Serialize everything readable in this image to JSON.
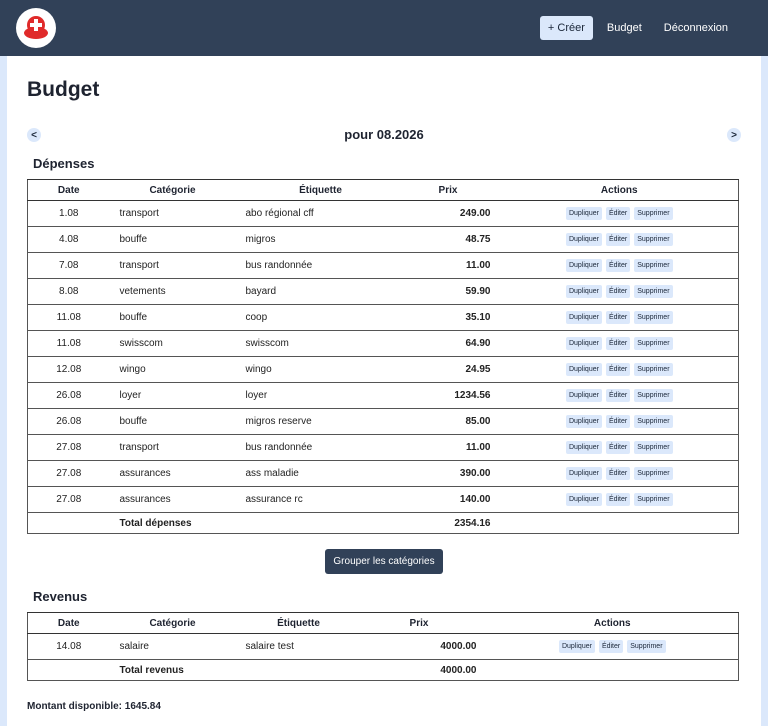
{
  "nav": {
    "create_label": "+ Créer",
    "budget_label": "Budget",
    "logout_label": "Déconnexion"
  },
  "page": {
    "title": "Budget",
    "month_label": "pour 08.2026",
    "prev_label": "<",
    "next_label": ">"
  },
  "depenses": {
    "heading": "Dépenses",
    "columns": [
      "Date",
      "Catégorie",
      "Étiquette",
      "Prix",
      "Actions"
    ],
    "action_labels": [
      "Dupliquer",
      "Éditer",
      "Supprimer"
    ],
    "rows": [
      {
        "date": "1.08",
        "category": "transport",
        "label": "abo régional cff",
        "price": "249.00"
      },
      {
        "date": "4.08",
        "category": "bouffe",
        "label": "migros",
        "price": "48.75"
      },
      {
        "date": "7.08",
        "category": "transport",
        "label": "bus randonnée",
        "price": "11.00"
      },
      {
        "date": "8.08",
        "category": "vetements",
        "label": "bayard",
        "price": "59.90"
      },
      {
        "date": "11.08",
        "category": "bouffe",
        "label": "coop",
        "price": "35.10"
      },
      {
        "date": "11.08",
        "category": "swisscom",
        "label": "swisscom",
        "price": "64.90"
      },
      {
        "date": "12.08",
        "category": "wingo",
        "label": "wingo",
        "price": "24.95"
      },
      {
        "date": "26.08",
        "category": "loyer",
        "label": "loyer",
        "price": "1234.56"
      },
      {
        "date": "26.08",
        "category": "bouffe",
        "label": "migros reserve",
        "price": "85.00"
      },
      {
        "date": "27.08",
        "category": "transport",
        "label": "bus randonnée",
        "price": "11.00"
      },
      {
        "date": "27.08",
        "category": "assurances",
        "label": "ass maladie",
        "price": "390.00"
      },
      {
        "date": "27.08",
        "category": "assurances",
        "label": "assurance rc",
        "price": "140.00"
      }
    ],
    "total_label": "Total dépenses",
    "total_value": "2354.16",
    "group_button": "Grouper les catégories"
  },
  "revenus": {
    "heading": "Revenus",
    "columns": [
      "Date",
      "Catégorie",
      "Étiquette",
      "Prix",
      "Actions"
    ],
    "rows": [
      {
        "date": "14.08",
        "category": "salaire",
        "label": "salaire test",
        "price": "4000.00"
      }
    ],
    "total_label": "Total revenus",
    "total_value": "4000.00"
  },
  "montant": "Montant disponible: 1645.84",
  "colors": {
    "navbar": "#314158",
    "background": "#dbe8fb",
    "button_light": "#dbe8fb",
    "logo_red": "#e02a2a"
  },
  "icons": {
    "logo": "swiss-cross-logo-icon"
  }
}
